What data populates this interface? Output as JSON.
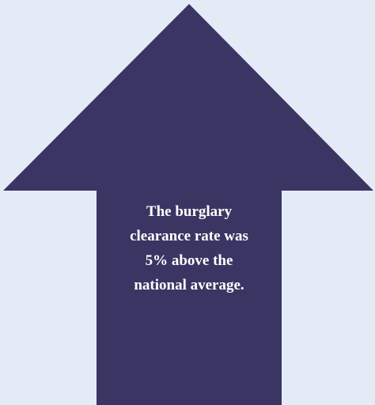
{
  "text": {
    "lines": [
      "The burglary",
      "clearance rate was",
      "5% above the",
      "national average."
    ]
  }
}
